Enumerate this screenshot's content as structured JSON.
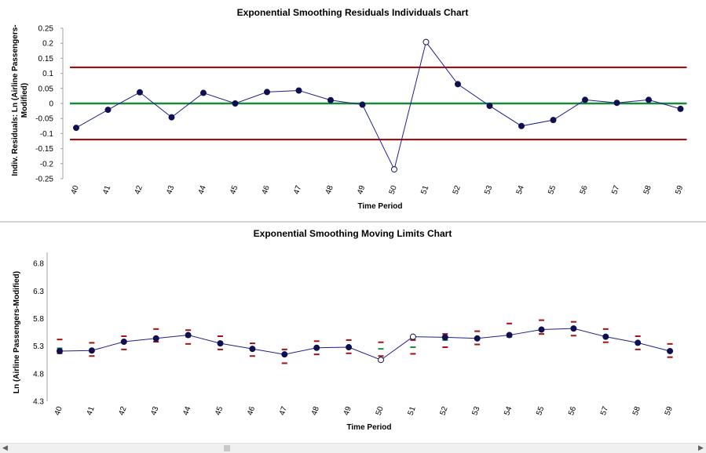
{
  "chart_data": [
    {
      "type": "line",
      "title": "Exponential Smoothing Residuals Individuals Chart",
      "xlabel": "Time Period",
      "ylabel_lines": [
        "Indiv. Residuals: Ln (Airline Passengers-",
        "Modified)"
      ],
      "categories": [
        "40",
        "41",
        "42",
        "43",
        "44",
        "45",
        "46",
        "47",
        "48",
        "49",
        "50",
        "51",
        "52",
        "53",
        "54",
        "55",
        "56",
        "57",
        "58",
        "59"
      ],
      "ylim": [
        -0.25,
        0.25
      ],
      "yticks": [
        "0.25",
        "0.2",
        "0.15",
        "0.1",
        "0.05",
        "0",
        "-0.05",
        "-0.1",
        "-0.15",
        "-0.2",
        "-0.25"
      ],
      "ytick_values": [
        0.25,
        0.2,
        0.15,
        0.1,
        0.05,
        0,
        -0.05,
        -0.1,
        -0.15,
        -0.2,
        -0.25
      ],
      "values": [
        -0.081,
        -0.021,
        0.037,
        -0.046,
        0.035,
        0.0,
        0.038,
        0.043,
        0.011,
        -0.004,
        -0.219,
        0.204,
        0.064,
        -0.008,
        -0.075,
        -0.055,
        0.012,
        0.002,
        0.012,
        -0.018
      ],
      "out_of_control_points": [
        "50",
        "51"
      ],
      "ucl": 0.12,
      "center": 0.0,
      "lcl": -0.12,
      "colors": {
        "series": "#1f1f8a",
        "marker": "#101050",
        "limits": "#a01010",
        "center": "#1a8a3a"
      }
    },
    {
      "type": "line",
      "title": "Exponential Smoothing Moving Limits Chart",
      "xlabel": "Time Period",
      "ylabel_lines": [
        "Ln (Airline Passengers-Modified)"
      ],
      "categories": [
        "40",
        "41",
        "42",
        "43",
        "44",
        "45",
        "46",
        "47",
        "48",
        "49",
        "50",
        "51",
        "52",
        "53",
        "54",
        "55",
        "56",
        "57",
        "58",
        "59"
      ],
      "ylim": [
        4.3,
        7.0
      ],
      "yticks": [
        "6.8",
        "6.3",
        "5.8",
        "5.3",
        "4.8",
        "4.3"
      ],
      "ytick_values": [
        6.8,
        6.3,
        5.8,
        5.3,
        4.8,
        4.3
      ],
      "values": [
        5.21,
        5.22,
        5.38,
        5.44,
        5.5,
        5.35,
        5.25,
        5.15,
        5.27,
        5.28,
        5.05,
        5.47,
        5.46,
        5.44,
        5.5,
        5.6,
        5.62,
        5.47,
        5.36,
        5.21
      ],
      "forecast": [
        5.26,
        5.21,
        5.36,
        5.46,
        5.47,
        5.37,
        5.26,
        5.14,
        5.27,
        5.27,
        5.25,
        5.28,
        5.41,
        5.45,
        5.52,
        5.61,
        5.6,
        5.49,
        5.35,
        5.21
      ],
      "ucl": [
        5.42,
        5.36,
        5.48,
        5.61,
        5.59,
        5.48,
        5.35,
        5.24,
        5.39,
        5.41,
        5.37,
        5.41,
        5.52,
        5.57,
        5.71,
        5.77,
        5.74,
        5.61,
        5.48,
        5.34
      ],
      "lcl": [
        5.17,
        5.12,
        5.24,
        5.38,
        5.34,
        5.24,
        5.12,
        4.99,
        5.15,
        5.17,
        5.12,
        5.16,
        5.28,
        5.33,
        5.47,
        5.52,
        5.49,
        5.37,
        5.24,
        5.1
      ],
      "out_of_control_points": [
        "50",
        "51"
      ],
      "colors": {
        "series": "#1f1f8a",
        "marker": "#101050",
        "limits": "#a01010",
        "center": "#1a8a3a"
      }
    }
  ],
  "scrollbar": {
    "left_arrow": "◀",
    "right_arrow": "▶"
  }
}
